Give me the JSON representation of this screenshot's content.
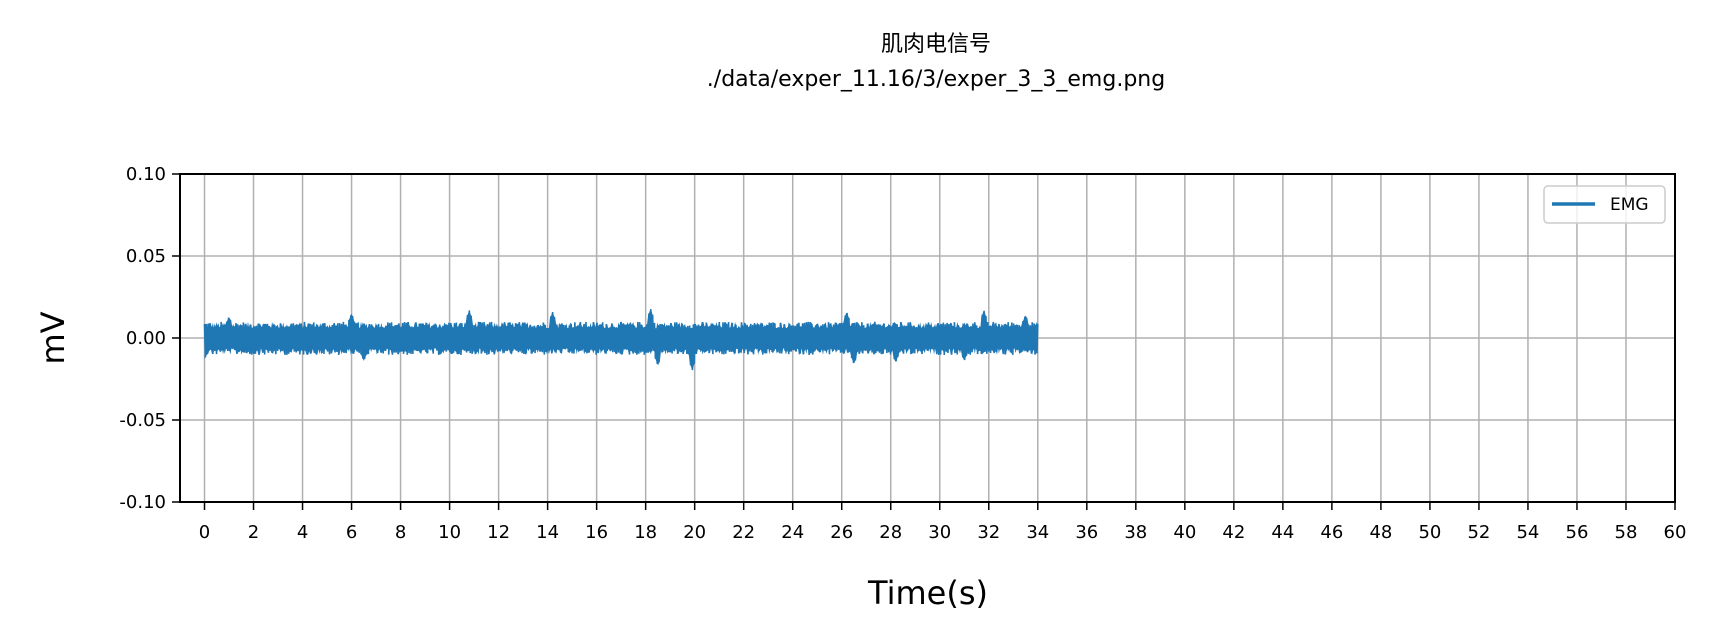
{
  "chart_data": {
    "type": "line",
    "title": "肌肉电信号",
    "subtitle": "./data/exper_11.16/3/exper_3_3_emg.png",
    "xlabel": "Time(s)",
    "ylabel": "mV",
    "xlim": [
      -1,
      60
    ],
    "ylim": [
      -0.1,
      0.1
    ],
    "x_ticks": [
      "0",
      "2",
      "4",
      "6",
      "8",
      "10",
      "12",
      "14",
      "16",
      "18",
      "20",
      "22",
      "24",
      "26",
      "28",
      "30",
      "32",
      "34",
      "36",
      "38",
      "40",
      "42",
      "44",
      "46",
      "48",
      "50",
      "52",
      "54",
      "56",
      "58",
      "60"
    ],
    "y_ticks": [
      "0.10",
      "0.05",
      "0.00",
      "-0.05",
      "-0.10"
    ],
    "grid": true,
    "legend_position": "top-right",
    "series": [
      {
        "name": "EMG",
        "color": "#1f77b4",
        "x_range": [
          0,
          34
        ],
        "typical_amplitude": 0.009,
        "peaks": [
          {
            "x": 1.0,
            "y": 0.013
          },
          {
            "x": 6.0,
            "y": 0.015
          },
          {
            "x": 10.8,
            "y": 0.017
          },
          {
            "x": 14.2,
            "y": 0.016
          },
          {
            "x": 18.2,
            "y": 0.018
          },
          {
            "x": 26.2,
            "y": 0.016
          },
          {
            "x": 31.8,
            "y": 0.017
          },
          {
            "x": 33.5,
            "y": 0.014
          }
        ],
        "troughs": [
          {
            "x": 0.0,
            "y": -0.013
          },
          {
            "x": 6.5,
            "y": -0.014
          },
          {
            "x": 18.5,
            "y": -0.017
          },
          {
            "x": 19.9,
            "y": -0.02
          },
          {
            "x": 26.5,
            "y": -0.016
          },
          {
            "x": 28.2,
            "y": -0.015
          },
          {
            "x": 31.0,
            "y": -0.014
          }
        ]
      }
    ]
  }
}
